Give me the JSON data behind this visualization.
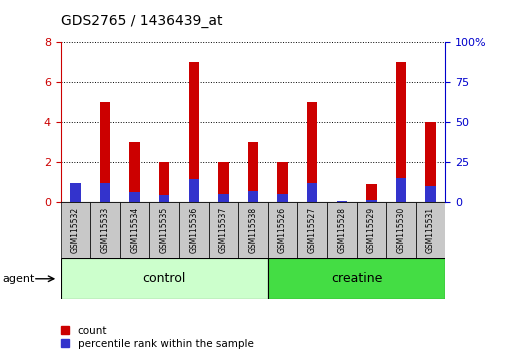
{
  "title": "GDS2765 / 1436439_at",
  "samples": [
    "GSM115532",
    "GSM115533",
    "GSM115534",
    "GSM115535",
    "GSM115536",
    "GSM115537",
    "GSM115538",
    "GSM115526",
    "GSM115527",
    "GSM115528",
    "GSM115529",
    "GSM115530",
    "GSM115531"
  ],
  "counts": [
    0.05,
    5.0,
    3.0,
    2.0,
    7.0,
    2.0,
    3.0,
    2.0,
    5.0,
    0.05,
    0.9,
    7.0,
    4.0
  ],
  "percentiles_pct": [
    12,
    12,
    6,
    4,
    14,
    5,
    7,
    5,
    12,
    0.5,
    1,
    15,
    10
  ],
  "bar_color": "#cc0000",
  "percentile_color": "#3333cc",
  "ylim_left": [
    0,
    8
  ],
  "ylim_right": [
    0,
    100
  ],
  "yticks_left": [
    0,
    2,
    4,
    6,
    8
  ],
  "yticks_right": [
    0,
    25,
    50,
    75,
    100
  ],
  "ytick_labels_right": [
    "0",
    "25",
    "50",
    "75",
    "100%"
  ],
  "group_label": "agent",
  "legend_count_label": "count",
  "legend_percentile_label": "percentile rank within the sample",
  "left_tick_color": "#cc0000",
  "right_tick_color": "#0000cc",
  "bar_width": 0.35,
  "control_color": "#ccffcc",
  "creatine_color": "#44dd44",
  "sample_box_color": "#c8c8c8",
  "n_control": 7,
  "n_creatine": 6
}
